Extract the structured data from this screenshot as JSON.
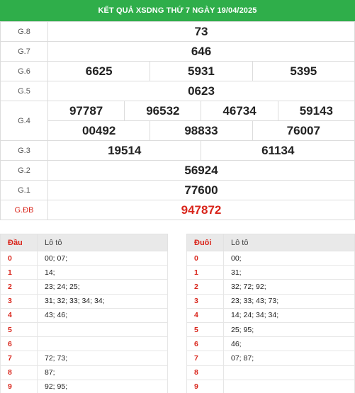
{
  "header": {
    "title": "KẾT QUẢ XSDNG THỨ 7 NGÀY 19/04/2025"
  },
  "prizes": {
    "g8": {
      "label": "G.8",
      "numbers": [
        "73"
      ]
    },
    "g7": {
      "label": "G.7",
      "numbers": [
        "646"
      ]
    },
    "g6": {
      "label": "G.6",
      "numbers": [
        "6625",
        "5931",
        "5395"
      ]
    },
    "g5": {
      "label": "G.5",
      "numbers": [
        "0623"
      ]
    },
    "g4": {
      "label": "G.4",
      "numbers": [
        "97787",
        "96532",
        "46734",
        "59143",
        "00492",
        "98833",
        "76007"
      ]
    },
    "g3": {
      "label": "G.3",
      "numbers": [
        "19514",
        "61134"
      ]
    },
    "g2": {
      "label": "G.2",
      "numbers": [
        "56924"
      ]
    },
    "g1": {
      "label": "G.1",
      "numbers": [
        "77600"
      ]
    },
    "db": {
      "label": "G.ĐB",
      "numbers": [
        "947872"
      ]
    }
  },
  "dau": {
    "header_key": "Đầu",
    "header_val": "Lô tô",
    "rows": [
      {
        "key": "0",
        "val": "00; 07;"
      },
      {
        "key": "1",
        "val": "14;"
      },
      {
        "key": "2",
        "val": "23; 24; 25;"
      },
      {
        "key": "3",
        "val": "31; 32; 33; 34; 34;"
      },
      {
        "key": "4",
        "val": "43; 46;"
      },
      {
        "key": "5",
        "val": ""
      },
      {
        "key": "6",
        "val": ""
      },
      {
        "key": "7",
        "val": "72; 73;"
      },
      {
        "key": "8",
        "val": "87;"
      },
      {
        "key": "9",
        "val": "92; 95;"
      }
    ]
  },
  "duoi": {
    "header_key": "Đuôi",
    "header_val": "Lô tô",
    "rows": [
      {
        "key": "0",
        "val": "00;"
      },
      {
        "key": "1",
        "val": "31;"
      },
      {
        "key": "2",
        "val": "32; 72; 92;"
      },
      {
        "key": "3",
        "val": "23; 33; 43; 73;"
      },
      {
        "key": "4",
        "val": "14; 24; 34; 34;"
      },
      {
        "key": "5",
        "val": "25; 95;"
      },
      {
        "key": "6",
        "val": "46;"
      },
      {
        "key": "7",
        "val": "07; 87;"
      },
      {
        "key": "8",
        "val": ""
      },
      {
        "key": "9",
        "val": ""
      }
    ]
  },
  "colors": {
    "header_bg": "#2fae4a",
    "accent_red": "#d9261c"
  }
}
